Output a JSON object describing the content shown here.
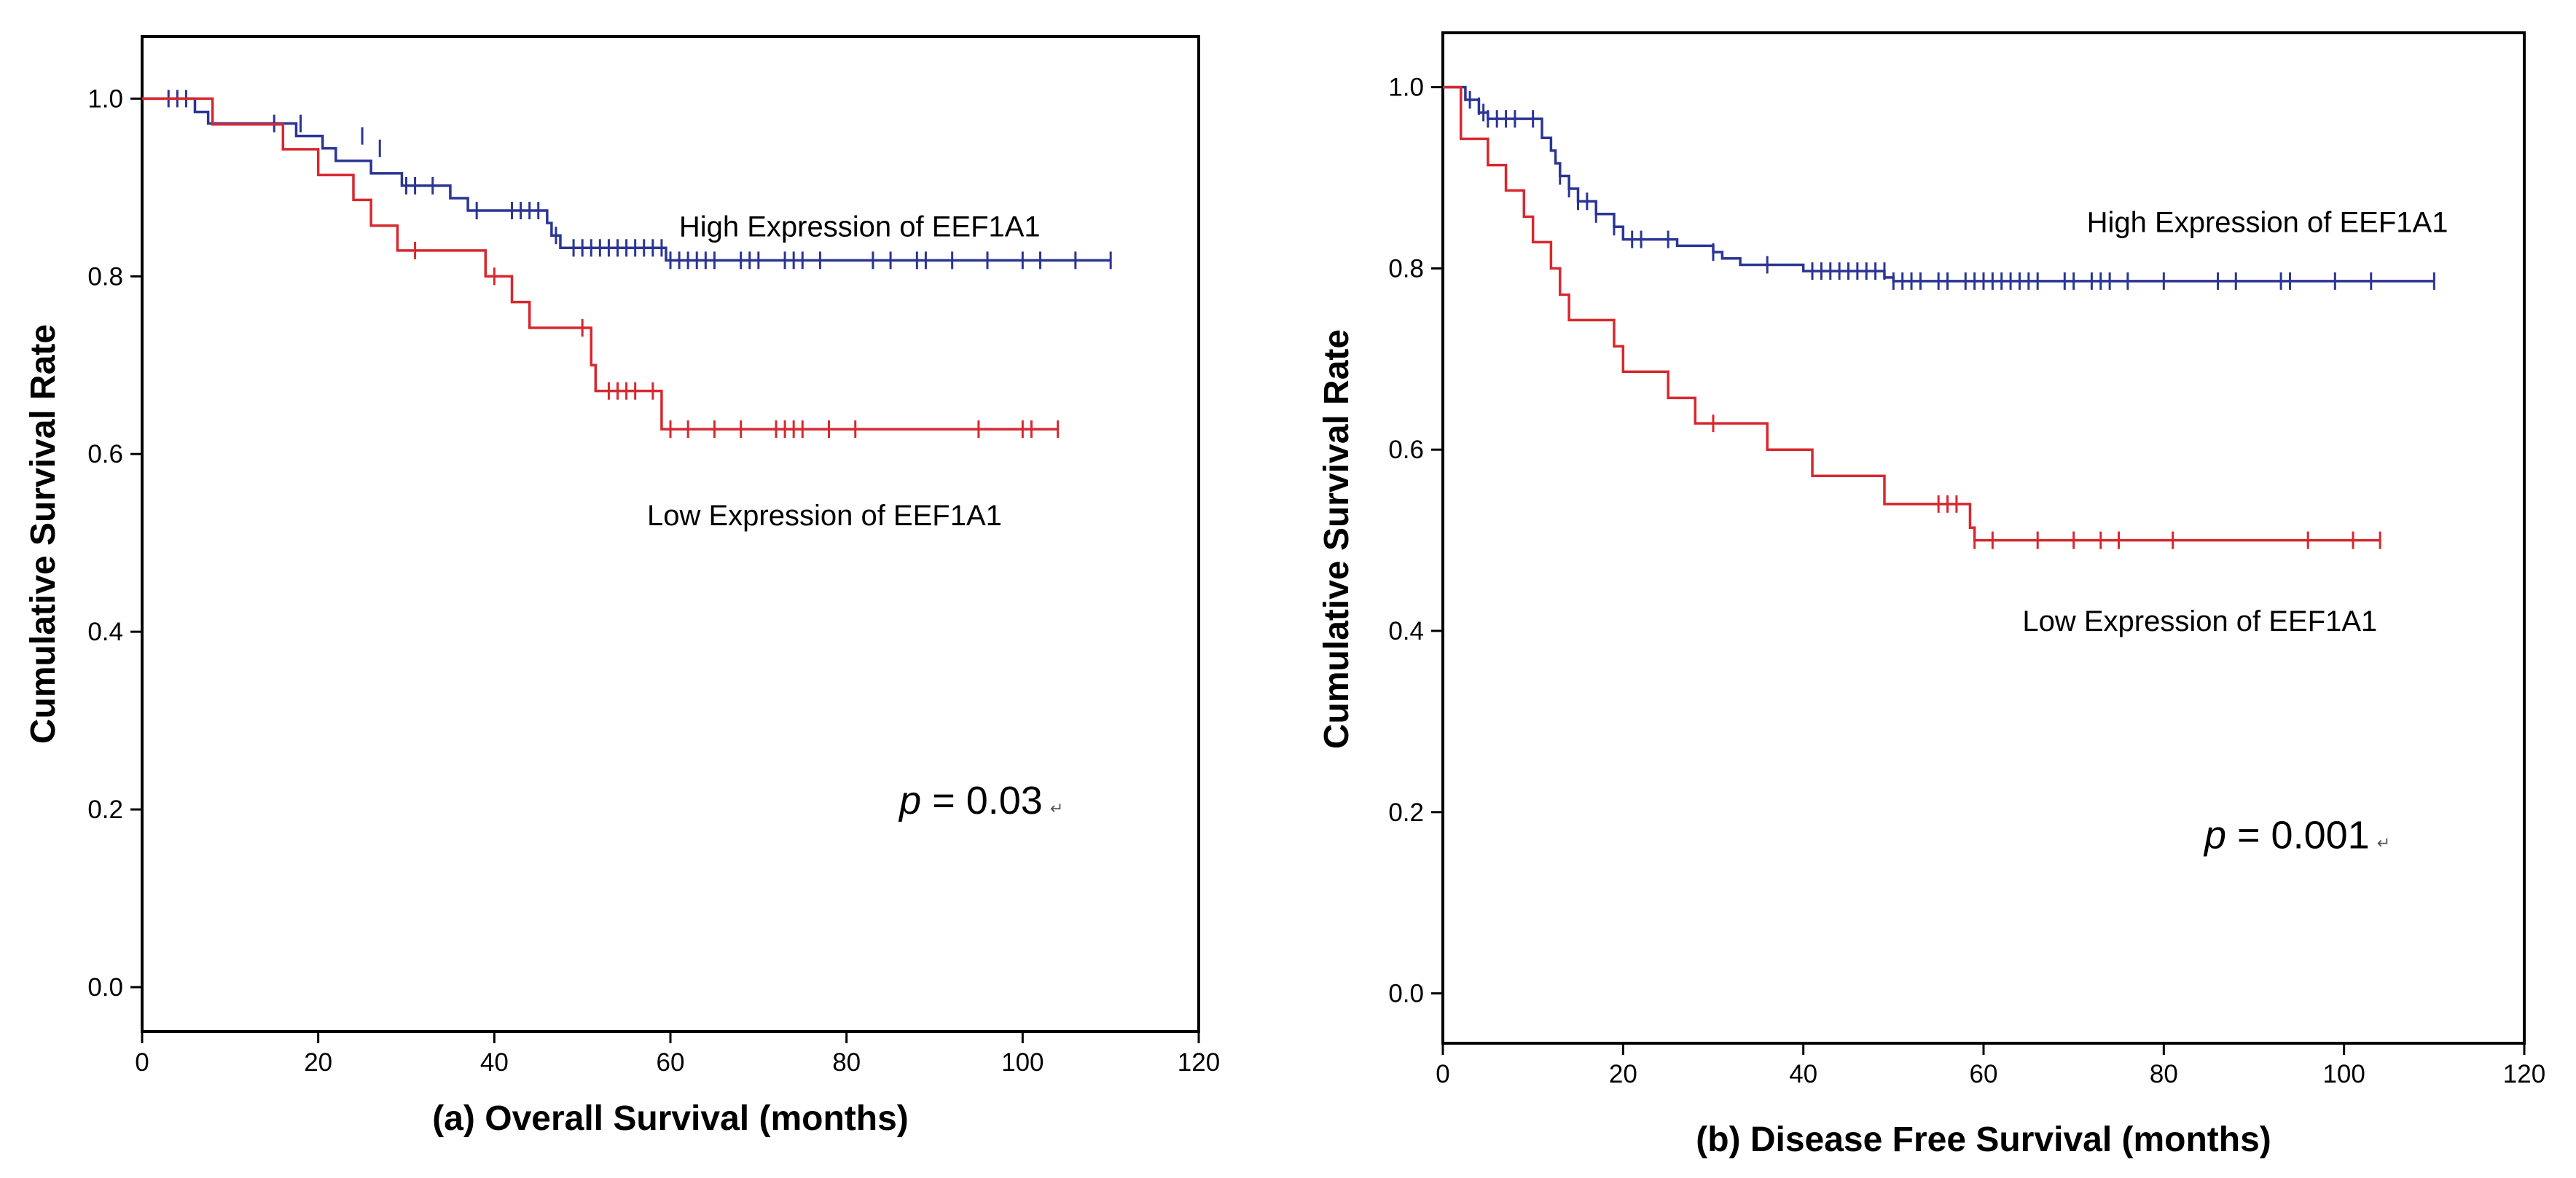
{
  "colors": {
    "high": "#2b3593",
    "low": "#d7282f",
    "axis": "#000000"
  },
  "chart_data": [
    {
      "type": "line",
      "subtype": "kaplan-meier",
      "panel": "a",
      "title": "",
      "xlabel": "(a) Overall Survival (months)",
      "ylabel": "Cumulative Survival Rate",
      "xlim": [
        0,
        120
      ],
      "ylim": [
        -0.05,
        1.07
      ],
      "xticks": [
        0,
        20,
        40,
        60,
        80,
        100,
        120
      ],
      "xtick_labels": [
        "0",
        "20",
        "40",
        "60",
        "80",
        "100",
        "120"
      ],
      "yticks": [
        0.0,
        0.2,
        0.4,
        0.6,
        0.8,
        1.0
      ],
      "ytick_labels": [
        "0.0",
        "0.2",
        "0.4",
        "0.6",
        "0.8",
        "1.0"
      ],
      "grid": false,
      "annotation": {
        "prefix": "p",
        "text": " = 0.03",
        "x": 86,
        "y": 0.195
      },
      "series": [
        {
          "name": "High Expression of EEF1A1",
          "color": "high",
          "label_pos": {
            "x": 81.5,
            "y": 0.845
          },
          "steps": [
            [
              0,
              1.0
            ],
            [
              6,
              0.985
            ],
            [
              7.5,
              0.972
            ],
            [
              17.5,
              0.958
            ],
            [
              20.5,
              0.944
            ],
            [
              22,
              0.93
            ],
            [
              26,
              0.916
            ],
            [
              29.5,
              0.902
            ],
            [
              35,
              0.888
            ],
            [
              37,
              0.874
            ],
            [
              46,
              0.86
            ],
            [
              46.5,
              0.846
            ],
            [
              47.5,
              0.832
            ],
            [
              59.5,
              0.818
            ],
            [
              110,
              0.818
            ]
          ],
          "censors": [
            [
              3,
              1.0
            ],
            [
              4,
              1.0
            ],
            [
              5,
              1.0
            ],
            [
              15,
              0.972
            ],
            [
              18,
              0.972
            ],
            [
              25,
              0.958
            ],
            [
              27,
              0.944
            ],
            [
              30,
              0.902
            ],
            [
              31,
              0.902
            ],
            [
              33,
              0.902
            ],
            [
              38,
              0.874
            ],
            [
              42,
              0.874
            ],
            [
              43,
              0.874
            ],
            [
              44,
              0.874
            ],
            [
              45,
              0.874
            ],
            [
              47,
              0.846
            ],
            [
              49,
              0.832
            ],
            [
              50,
              0.832
            ],
            [
              51,
              0.832
            ],
            [
              52,
              0.832
            ],
            [
              53,
              0.832
            ],
            [
              54,
              0.832
            ],
            [
              55,
              0.832
            ],
            [
              56,
              0.832
            ],
            [
              57,
              0.832
            ],
            [
              58,
              0.832
            ],
            [
              59,
              0.832
            ],
            [
              60,
              0.818
            ],
            [
              61,
              0.818
            ],
            [
              62,
              0.818
            ],
            [
              63,
              0.818
            ],
            [
              64,
              0.818
            ],
            [
              65,
              0.818
            ],
            [
              68,
              0.818
            ],
            [
              69,
              0.818
            ],
            [
              70,
              0.818
            ],
            [
              73,
              0.818
            ],
            [
              74,
              0.818
            ],
            [
              75,
              0.818
            ],
            [
              77,
              0.818
            ],
            [
              83,
              0.818
            ],
            [
              85,
              0.818
            ],
            [
              88,
              0.818
            ],
            [
              89,
              0.818
            ],
            [
              92,
              0.818
            ],
            [
              96,
              0.818
            ],
            [
              100,
              0.818
            ],
            [
              102,
              0.818
            ],
            [
              106,
              0.818
            ],
            [
              110,
              0.818
            ]
          ]
        },
        {
          "name": "Low Expression of EEF1A1",
          "color": "low",
          "label_pos": {
            "x": 77.5,
            "y": 0.52
          },
          "steps": [
            [
              0,
              1.0
            ],
            [
              8,
              0.971
            ],
            [
              16,
              0.943
            ],
            [
              20,
              0.914
            ],
            [
              24,
              0.886
            ],
            [
              26,
              0.857
            ],
            [
              29,
              0.829
            ],
            [
              39,
              0.8
            ],
            [
              42,
              0.771
            ],
            [
              44,
              0.742
            ],
            [
              51,
              0.7
            ],
            [
              51.5,
              0.671
            ],
            [
              59,
              0.628
            ],
            [
              104,
              0.628
            ]
          ],
          "censors": [
            [
              31,
              0.829
            ],
            [
              40,
              0.8
            ],
            [
              50,
              0.742
            ],
            [
              53,
              0.671
            ],
            [
              54,
              0.671
            ],
            [
              55,
              0.671
            ],
            [
              56,
              0.671
            ],
            [
              58,
              0.671
            ],
            [
              60,
              0.628
            ],
            [
              62,
              0.628
            ],
            [
              65,
              0.628
            ],
            [
              68,
              0.628
            ],
            [
              72,
              0.628
            ],
            [
              73,
              0.628
            ],
            [
              74,
              0.628
            ],
            [
              75,
              0.628
            ],
            [
              78,
              0.628
            ],
            [
              81,
              0.628
            ],
            [
              95,
              0.628
            ],
            [
              100,
              0.628
            ],
            [
              101,
              0.628
            ],
            [
              104,
              0.628
            ]
          ]
        }
      ]
    },
    {
      "type": "line",
      "subtype": "kaplan-meier",
      "panel": "b",
      "title": "",
      "xlabel": "(b) Disease Free Survival (months)",
      "ylabel": "Cumulative Survival Rate",
      "xlim": [
        0,
        120
      ],
      "ylim": [
        -0.055,
        1.06
      ],
      "xticks": [
        0,
        20,
        40,
        60,
        80,
        100,
        120
      ],
      "xtick_labels": [
        "0",
        "20",
        "40",
        "60",
        "80",
        "100",
        "120"
      ],
      "yticks": [
        0.0,
        0.2,
        0.4,
        0.6,
        0.8,
        1.0
      ],
      "ytick_labels": [
        "0.0",
        "0.2",
        "0.4",
        "0.6",
        "0.8",
        "1.0"
      ],
      "grid": false,
      "annotation": {
        "prefix": "p",
        "text": " = 0.001",
        "x": 84.5,
        "y": 0.16
      },
      "series": [
        {
          "name": "High Expression of EEF1A1",
          "color": "high",
          "label_pos": {
            "x": 91.5,
            "y": 0.84
          },
          "steps": [
            [
              0,
              1.0
            ],
            [
              2.5,
              0.986
            ],
            [
              4,
              0.972
            ],
            [
              5,
              0.965
            ],
            [
              11,
              0.944
            ],
            [
              12,
              0.93
            ],
            [
              12.5,
              0.916
            ],
            [
              13,
              0.902
            ],
            [
              14,
              0.888
            ],
            [
              15,
              0.874
            ],
            [
              17,
              0.86
            ],
            [
              19,
              0.846
            ],
            [
              20,
              0.832
            ],
            [
              26,
              0.825
            ],
            [
              30,
              0.818
            ],
            [
              31,
              0.811
            ],
            [
              33,
              0.804
            ],
            [
              40,
              0.797
            ],
            [
              49,
              0.79
            ],
            [
              50,
              0.786
            ],
            [
              110,
              0.786
            ]
          ],
          "censors": [
            [
              3,
              0.986
            ],
            [
              4,
              0.979
            ],
            [
              4.5,
              0.972
            ],
            [
              5,
              0.965
            ],
            [
              6,
              0.965
            ],
            [
              7,
              0.965
            ],
            [
              8,
              0.965
            ],
            [
              10,
              0.965
            ],
            [
              13,
              0.902
            ],
            [
              14,
              0.888
            ],
            [
              15,
              0.874
            ],
            [
              16,
              0.874
            ],
            [
              17,
              0.86
            ],
            [
              19,
              0.846
            ],
            [
              21,
              0.832
            ],
            [
              22,
              0.832
            ],
            [
              25,
              0.832
            ],
            [
              30,
              0.818
            ],
            [
              36,
              0.804
            ],
            [
              41,
              0.797
            ],
            [
              42,
              0.797
            ],
            [
              43,
              0.797
            ],
            [
              44,
              0.797
            ],
            [
              45,
              0.797
            ],
            [
              46,
              0.797
            ],
            [
              47,
              0.797
            ],
            [
              48,
              0.797
            ],
            [
              49,
              0.797
            ],
            [
              50,
              0.786
            ],
            [
              51,
              0.786
            ],
            [
              52,
              0.786
            ],
            [
              53,
              0.786
            ],
            [
              55,
              0.786
            ],
            [
              56,
              0.786
            ],
            [
              58,
              0.786
            ],
            [
              59,
              0.786
            ],
            [
              60,
              0.786
            ],
            [
              61,
              0.786
            ],
            [
              62,
              0.786
            ],
            [
              63,
              0.786
            ],
            [
              64,
              0.786
            ],
            [
              65,
              0.786
            ],
            [
              66,
              0.786
            ],
            [
              69,
              0.786
            ],
            [
              70,
              0.786
            ],
            [
              72,
              0.786
            ],
            [
              73,
              0.786
            ],
            [
              74,
              0.786
            ],
            [
              76,
              0.786
            ],
            [
              80,
              0.786
            ],
            [
              86,
              0.786
            ],
            [
              88,
              0.786
            ],
            [
              93,
              0.786
            ],
            [
              94,
              0.786
            ],
            [
              99,
              0.786
            ],
            [
              103,
              0.786
            ],
            [
              110,
              0.786
            ]
          ]
        },
        {
          "name": "Low Expression of EEF1A1",
          "color": "low",
          "label_pos": {
            "x": 84,
            "y": 0.4
          },
          "steps": [
            [
              0,
              1.0
            ],
            [
              2,
              0.943
            ],
            [
              5,
              0.914
            ],
            [
              7,
              0.886
            ],
            [
              9,
              0.857
            ],
            [
              10,
              0.829
            ],
            [
              12,
              0.8
            ],
            [
              13,
              0.771
            ],
            [
              14,
              0.743
            ],
            [
              19,
              0.714
            ],
            [
              20,
              0.686
            ],
            [
              25,
              0.657
            ],
            [
              28,
              0.629
            ],
            [
              36,
              0.6
            ],
            [
              41,
              0.571
            ],
            [
              49,
              0.54
            ],
            [
              58.5,
              0.514
            ],
            [
              59,
              0.5
            ],
            [
              104,
              0.5
            ]
          ],
          "censors": [
            [
              30,
              0.629
            ],
            [
              55,
              0.54
            ],
            [
              56,
              0.54
            ],
            [
              57,
              0.54
            ],
            [
              59,
              0.5
            ],
            [
              61,
              0.5
            ],
            [
              66,
              0.5
            ],
            [
              70,
              0.5
            ],
            [
              73,
              0.5
            ],
            [
              75,
              0.5
            ],
            [
              81,
              0.5
            ],
            [
              96,
              0.5
            ],
            [
              101,
              0.5
            ],
            [
              104,
              0.5
            ]
          ]
        }
      ]
    }
  ]
}
